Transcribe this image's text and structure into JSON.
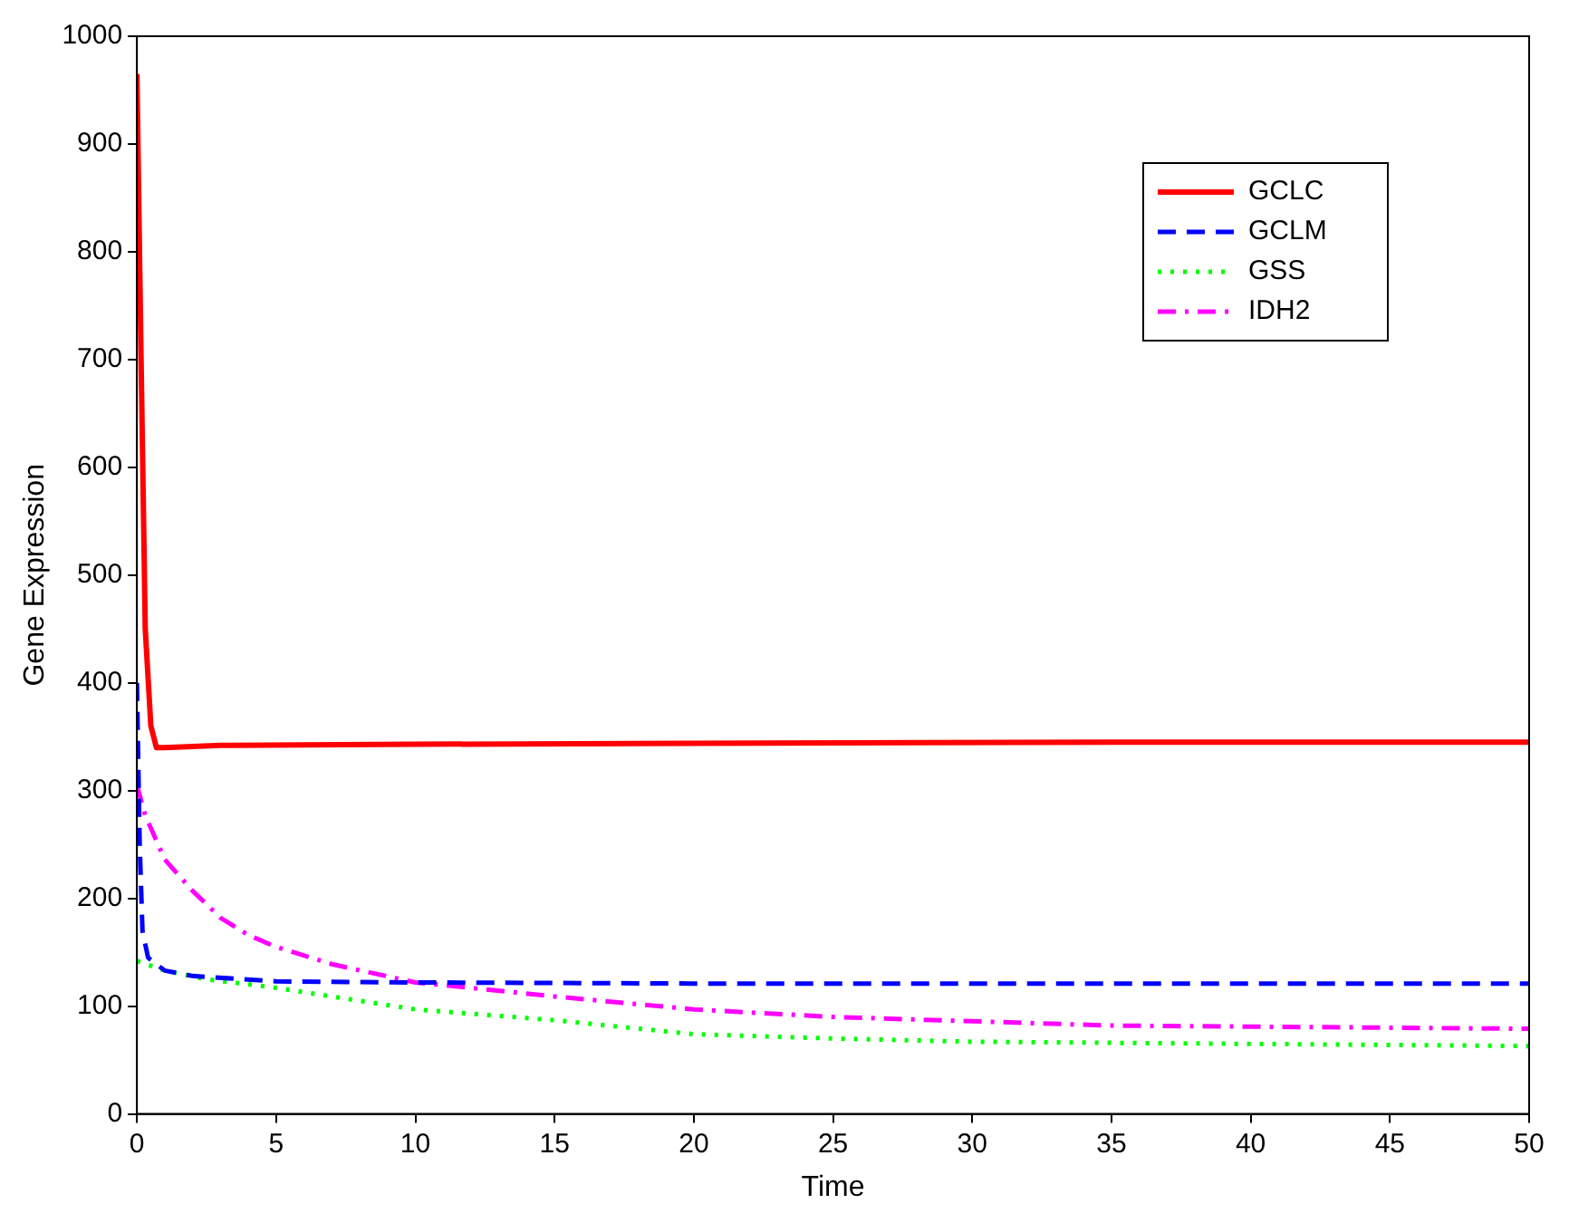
{
  "chart_data": {
    "type": "line",
    "xlabel": "Time",
    "ylabel": "Gene Expression",
    "xlim": [
      0,
      50
    ],
    "ylim": [
      0,
      1000
    ],
    "xticks": [
      0,
      5,
      10,
      15,
      20,
      25,
      30,
      35,
      40,
      45,
      50
    ],
    "yticks": [
      0,
      100,
      200,
      300,
      400,
      500,
      600,
      700,
      800,
      900,
      1000
    ],
    "grid": false,
    "legend": "top right",
    "marker": "none",
    "series": [
      {
        "name": "GCLC",
        "color": "#ff0000",
        "line_style": "solid",
        "x": [
          0,
          0.15,
          0.3,
          0.5,
          0.7,
          1,
          3,
          10,
          20,
          35,
          50
        ],
        "values": [
          965,
          700,
          450,
          360,
          340,
          340,
          342,
          343,
          344,
          345,
          345
        ]
      },
      {
        "name": "GCLM",
        "color": "#0000ff",
        "line_style": "dashed",
        "x": [
          0,
          0.1,
          0.2,
          0.4,
          1,
          2,
          5,
          10,
          20,
          35,
          50
        ],
        "values": [
          400,
          250,
          170,
          145,
          133,
          128,
          123,
          122,
          121,
          121,
          121
        ]
      },
      {
        "name": "GSS",
        "color": "#00ff00",
        "line_style": "dotted",
        "x": [
          0,
          1,
          2.5,
          5,
          10,
          15,
          20,
          25,
          30,
          40,
          50
        ],
        "values": [
          142,
          133,
          125,
          117,
          97,
          87,
          74,
          70,
          67,
          65,
          63
        ]
      },
      {
        "name": "IDH2",
        "color": "#ff00ff",
        "line_style": "dashdot",
        "x": [
          0,
          0.3,
          1,
          2,
          3,
          4,
          5,
          7,
          10,
          12,
          15,
          20,
          25,
          30,
          35,
          40,
          45,
          50
        ],
        "values": [
          305,
          277,
          236,
          207,
          182,
          166,
          155,
          139,
          122,
          117,
          109,
          97,
          90,
          86,
          82,
          81,
          80,
          79
        ]
      }
    ]
  }
}
